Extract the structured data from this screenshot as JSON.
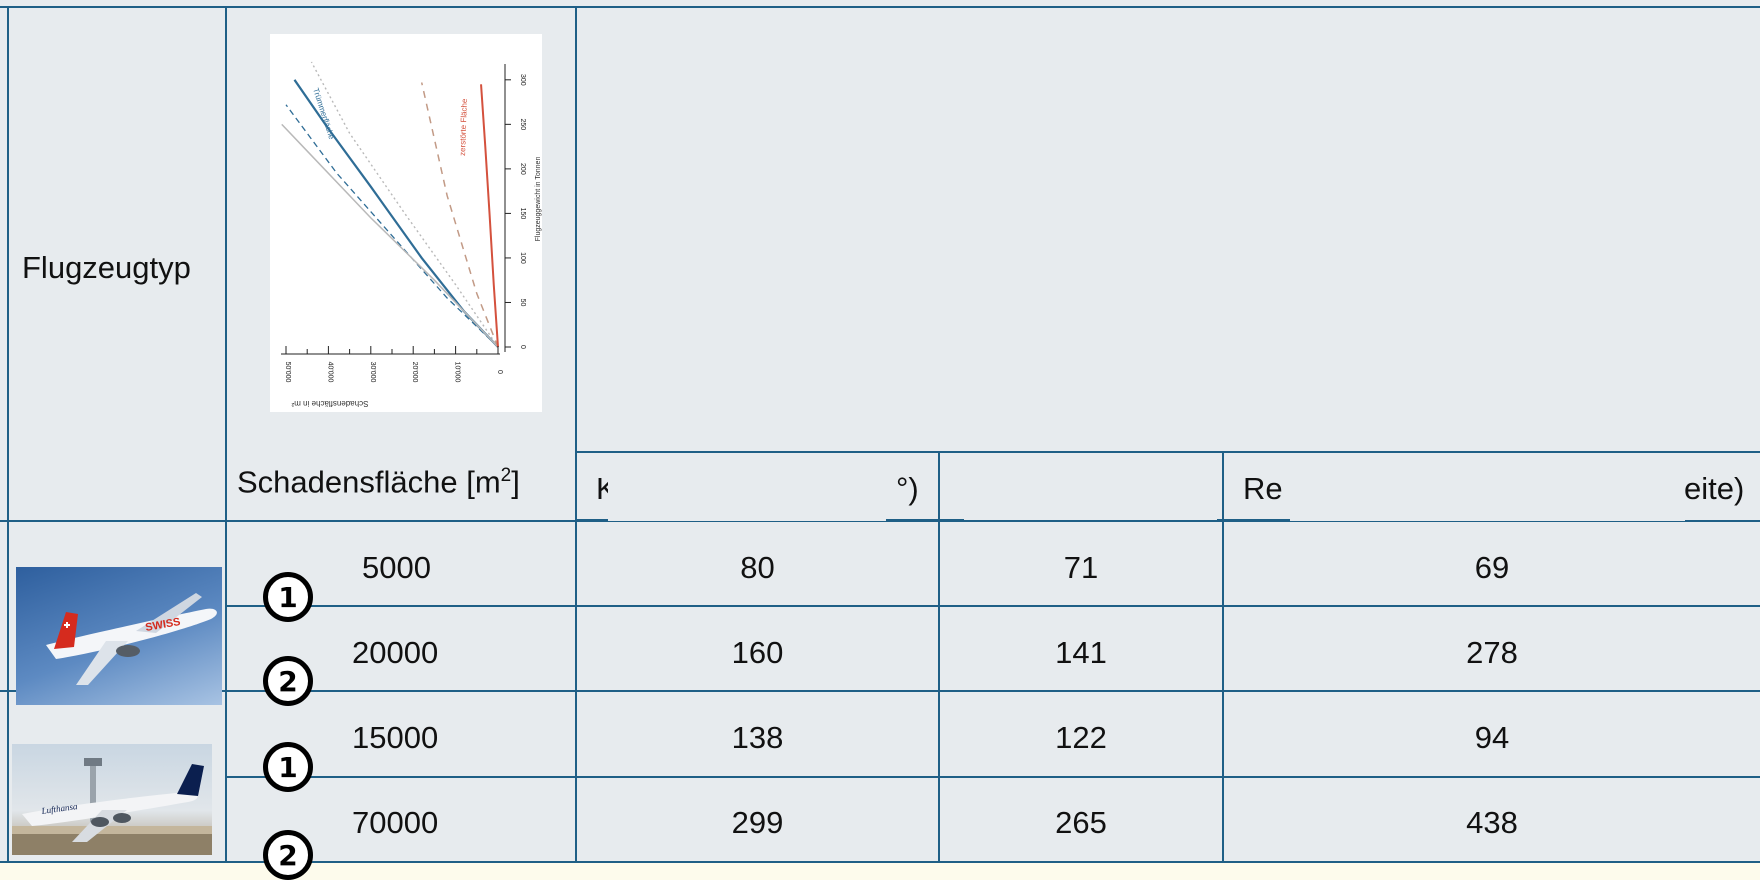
{
  "header": {
    "aircraft_type": "Flugzeugtyp",
    "damage_area": "Schadensfläche [m",
    "damage_area_sup": "2",
    "damage_area_close": "]",
    "col3_fragment": "K",
    "col3_fragment_end": "°)",
    "col5_fragment": "Re",
    "col5_fragment_end": "eite)"
  },
  "inset_chart": {
    "y_axis_label": "Flugzeuggewicht in Tonnen",
    "x_axis_label": "Schadensfläche in m²",
    "label_a": "Trümmerfläche",
    "label_b": "zerstörte Fläche",
    "colors": {
      "blue": "#2f6d96",
      "red": "#d4513d",
      "grey": "#b9b9b9",
      "brown": "#c29a86"
    }
  },
  "chart_data": {
    "type": "line",
    "title": "",
    "xlabel": "Schadensfläche in m²",
    "ylabel": "Flugzeuggewicht in Tonnen",
    "xlim": [
      0,
      50000
    ],
    "ylim": [
      0,
      320
    ],
    "x_ticks": [
      "0",
      "10'000",
      "20'000",
      "30'000",
      "40'000",
      "50'000"
    ],
    "y_ticks": [
      "0",
      "50",
      "100",
      "150",
      "200",
      "250",
      "300"
    ],
    "series": [
      {
        "name": "Trümmerfläche",
        "style": "solid-blue",
        "x": [
          0,
          8000,
          18000,
          30000,
          40000,
          48000
        ],
        "y": [
          0,
          40,
          100,
          180,
          245,
          300
        ]
      },
      {
        "name": "",
        "style": "dashed-blue",
        "x": [
          0,
          12000,
          25000,
          38000,
          50000
        ],
        "y": [
          0,
          55,
          125,
          195,
          272
        ]
      },
      {
        "name": "",
        "style": "solid-grey",
        "x": [
          0,
          15000,
          30000,
          45000,
          51000
        ],
        "y": [
          0,
          75,
          145,
          220,
          250
        ]
      },
      {
        "name": "",
        "style": "dotted-grey",
        "x": [
          0,
          10000,
          22000,
          35000,
          44000
        ],
        "y": [
          0,
          70,
          150,
          240,
          320
        ]
      },
      {
        "name": "",
        "style": "dashed-brown",
        "x": [
          0,
          5000,
          12000,
          18000
        ],
        "y": [
          0,
          60,
          170,
          297
        ]
      },
      {
        "name": "zerstörte Fläche",
        "style": "solid-red",
        "x": [
          0,
          1000,
          2000,
          3000,
          4000
        ],
        "y": [
          0,
          70,
          150,
          225,
          295
        ]
      }
    ]
  },
  "rows": [
    {
      "badge": "1",
      "area": "5000",
      "v1": "80",
      "v2": "71",
      "v3": "69"
    },
    {
      "badge": "2",
      "area": "20000",
      "v1": "160",
      "v2": "141",
      "v3": "278"
    },
    {
      "badge": "1",
      "area": "15000",
      "v1": "138",
      "v2": "122",
      "v3": "94"
    },
    {
      "badge": "2",
      "area": "70000",
      "v1": "299",
      "v2": "265",
      "v3": "438"
    }
  ],
  "aircraft_photos": [
    {
      "name": "Swiss Airbus A321",
      "livery_text": "SWISS",
      "colors": {
        "sky": "#5d8ac2",
        "tail": "#d52b1e"
      }
    },
    {
      "name": "Lufthansa Airbus A380",
      "livery_text": "Lufthansa",
      "colors": {
        "sky": "#c9d6e2",
        "tail": "#0b1f4f"
      }
    }
  ]
}
